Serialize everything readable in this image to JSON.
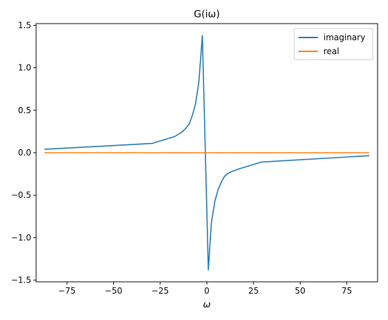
{
  "chart_data": {
    "type": "line",
    "title": "G(iω)",
    "xlabel": "ω",
    "ylabel": "",
    "xlim": [
      -91.5,
      91.5
    ],
    "ylim": [
      -1.52,
      1.52
    ],
    "xticks": [
      -75,
      -50,
      -25,
      0,
      25,
      50,
      75
    ],
    "xtick_labels": [
      "−75",
      "−50",
      "−25",
      "0",
      "25",
      "50",
      "75"
    ],
    "yticks": [
      -1.5,
      -1.0,
      -0.5,
      0.0,
      0.5,
      1.0,
      1.5
    ],
    "ytick_labels": [
      "−1.5",
      "−1.0",
      "−0.5",
      "0.0",
      "0.5",
      "1.0",
      "1.5"
    ],
    "grid": false,
    "legend_position": "top-right",
    "series": [
      {
        "name": "imaginary",
        "color": "#1f77b4",
        "x": [
          -87.0,
          -29.2,
          -17.3,
          -13.5,
          -11.6,
          -9.4,
          -7.9,
          -6.1,
          -4.3,
          -2.4,
          -0.8,
          0.8,
          2.4,
          4.3,
          6.1,
          7.9,
          9.4,
          11.6,
          13.5,
          17.3,
          29.2,
          87.0
        ],
        "y": [
          0.04,
          0.11,
          0.19,
          0.24,
          0.28,
          0.34,
          0.43,
          0.57,
          0.83,
          1.38,
          0.0,
          -1.38,
          -0.83,
          -0.57,
          -0.43,
          -0.34,
          -0.28,
          -0.24,
          -0.22,
          -0.19,
          -0.11,
          -0.035
        ]
      },
      {
        "name": "real",
        "color": "#ff7f0e",
        "x": [
          -87.0,
          87.0
        ],
        "y": [
          0.0,
          0.0
        ]
      }
    ]
  }
}
